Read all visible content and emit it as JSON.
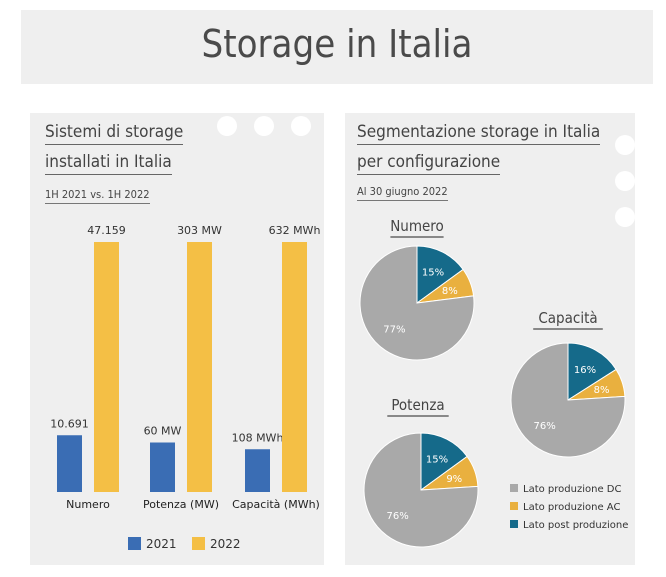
{
  "page_title": "Storage in Italia",
  "left_panel": {
    "title_line1": "Sistemi di storage",
    "title_line2": "installati in Italia",
    "subtitle": "1H 2021 vs. 1H 2022"
  },
  "right_panel": {
    "title_line1": "Segmentazione storage in Italia",
    "title_line2": "per configurazione",
    "subtitle": "Al 30 giugno 2022"
  },
  "colors": {
    "series_2021": "#3a6db4",
    "series_2022": "#f4bf45",
    "lato_dc": "#a9a9a9",
    "lato_ac": "#e9b03f",
    "lato_post": "#156a8a"
  },
  "chart_data": [
    {
      "type": "bar",
      "categories": [
        "Numero",
        "Potenza (MW)",
        "Capacità (MWh)"
      ],
      "series": [
        {
          "name": "2021",
          "values": [
            10691,
            60,
            108
          ],
          "labels": [
            "10.691",
            "60 MW",
            "108 MWh"
          ],
          "heights": [
            0.227,
            0.198,
            0.171
          ]
        },
        {
          "name": "2022",
          "values": [
            47159,
            303,
            632
          ],
          "labels": [
            "47.159",
            "303 MW",
            "632 MWh"
          ],
          "heights": [
            1.0,
            1.0,
            1.0
          ]
        }
      ],
      "legend": "bottom",
      "grid": false
    },
    {
      "type": "pie",
      "title": "Numero",
      "slices": [
        {
          "label": "Lato post produzione",
          "value": 15,
          "text": "15%"
        },
        {
          "label": "Lato produzione AC",
          "value": 8,
          "text": "8%"
        },
        {
          "label": "Lato produzione DC",
          "value": 77,
          "text": "77%"
        }
      ]
    },
    {
      "type": "pie",
      "title": "Potenza",
      "slices": [
        {
          "label": "Lato post produzione",
          "value": 15,
          "text": "15%"
        },
        {
          "label": "Lato produzione AC",
          "value": 9,
          "text": "9%"
        },
        {
          "label": "Lato produzione DC",
          "value": 76,
          "text": "76%"
        }
      ]
    },
    {
      "type": "pie",
      "title": "Capacità",
      "slices": [
        {
          "label": "Lato post produzione",
          "value": 16,
          "text": "16%"
        },
        {
          "label": "Lato produzione AC",
          "value": 8,
          "text": "8%"
        },
        {
          "label": "Lato produzione DC",
          "value": 76,
          "text": "76%"
        }
      ],
      "legend": {
        "placement": "bottom-right",
        "entries": [
          "Lato produzione DC",
          "Lato produzione AC",
          "Lato post produzione"
        ]
      }
    }
  ]
}
